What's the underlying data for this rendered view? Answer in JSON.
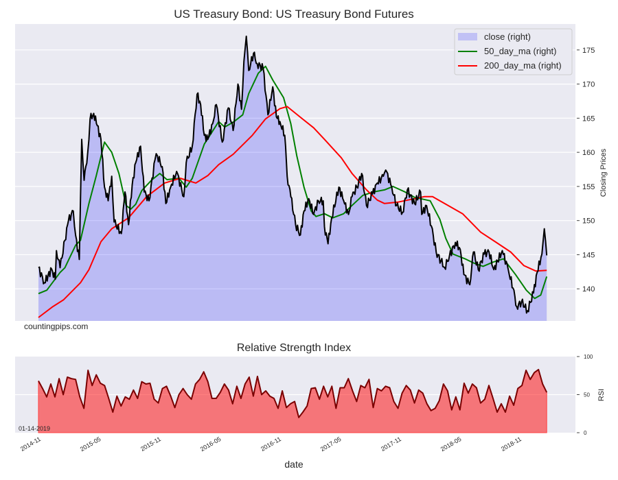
{
  "chart_data": [
    {
      "type": "area",
      "title": "US Treasury Bond: US Treasury Bond Futures",
      "ylabel": "Closing Prices",
      "ylim": [
        135.3,
        178.8
      ],
      "yticks": [
        140,
        145,
        150,
        155,
        160,
        165,
        170,
        175
      ],
      "grid": true,
      "legend_placement": "top-right",
      "legend": [
        "close (right)",
        "50_day_ma (right)",
        "200_day_ma (right)"
      ],
      "colors": {
        "close_fill": "#c1c1f5",
        "close_line": "#000000",
        "ma50": "#008000",
        "ma200": "#ff0000",
        "background": "#eaeaf2"
      },
      "watermark": "countingpips.com",
      "series": [
        {
          "name": "close (right)",
          "points": [
            [
              2014.81,
              143.1
            ],
            [
              2014.86,
              140.9
            ],
            [
              2014.92,
              142.9
            ],
            [
              2014.95,
              141.4
            ],
            [
              2014.96,
              145.6
            ],
            [
              2014.99,
              143.1
            ],
            [
              2015.03,
              147.1
            ],
            [
              2015.06,
              150.0
            ],
            [
              2015.1,
              151.4
            ],
            [
              2015.12,
              147.8
            ],
            [
              2015.15,
              144.3
            ],
            [
              2015.17,
              161.9
            ],
            [
              2015.19,
              155.9
            ],
            [
              2015.22,
              159.9
            ],
            [
              2015.24,
              164.9
            ],
            [
              2015.27,
              165.7
            ],
            [
              2015.3,
              163.9
            ],
            [
              2015.33,
              161.9
            ],
            [
              2015.36,
              154.9
            ],
            [
              2015.39,
              152.9
            ],
            [
              2015.42,
              156.5
            ],
            [
              2015.44,
              149.8
            ],
            [
              2015.5,
              148.1
            ],
            [
              2015.53,
              154.2
            ],
            [
              2015.56,
              149.4
            ],
            [
              2015.59,
              155.2
            ],
            [
              2015.62,
              158.5
            ],
            [
              2015.66,
              160.9
            ],
            [
              2015.69,
              154.2
            ],
            [
              2015.73,
              152.9
            ],
            [
              2015.78,
              158.9
            ],
            [
              2015.8,
              159.5
            ],
            [
              2015.84,
              157.9
            ],
            [
              2015.87,
              152.5
            ],
            [
              2015.91,
              154.9
            ],
            [
              2015.96,
              157.2
            ],
            [
              2016.02,
              153.5
            ],
            [
              2016.04,
              158.5
            ],
            [
              2016.09,
              160.9
            ],
            [
              2016.13,
              168.5
            ],
            [
              2016.16,
              167.0
            ],
            [
              2016.19,
              162.5
            ],
            [
              2016.22,
              161.9
            ],
            [
              2016.26,
              164.2
            ],
            [
              2016.29,
              167.0
            ],
            [
              2016.34,
              161.5
            ],
            [
              2016.39,
              166.5
            ],
            [
              2016.43,
              163.2
            ],
            [
              2016.47,
              170.0
            ],
            [
              2016.5,
              166.3
            ],
            [
              2016.52,
              173.3
            ],
            [
              2016.54,
              177.0
            ],
            [
              2016.56,
              172.0
            ],
            [
              2016.6,
              174.5
            ],
            [
              2016.63,
              173.0
            ],
            [
              2016.68,
              172.3
            ],
            [
              2016.72,
              165.5
            ],
            [
              2016.76,
              169.6
            ],
            [
              2016.79,
              165.2
            ],
            [
              2016.82,
              164.5
            ],
            [
              2016.86,
              162.5
            ],
            [
              2016.88,
              156.5
            ],
            [
              2016.91,
              153.5
            ],
            [
              2016.95,
              149.4
            ],
            [
              2016.99,
              147.9
            ],
            [
              2017.02,
              151.4
            ],
            [
              2017.06,
              153.2
            ],
            [
              2017.1,
              150.9
            ],
            [
              2017.14,
              152.9
            ],
            [
              2017.18,
              152.9
            ],
            [
              2017.19,
              149.1
            ],
            [
              2017.22,
              146.6
            ],
            [
              2017.25,
              150.4
            ],
            [
              2017.31,
              154.9
            ],
            [
              2017.35,
              152.9
            ],
            [
              2017.39,
              150.9
            ],
            [
              2017.42,
              153.5
            ],
            [
              2017.46,
              154.9
            ],
            [
              2017.5,
              156.9
            ],
            [
              2017.54,
              152.2
            ],
            [
              2017.59,
              153.9
            ],
            [
              2017.63,
              155.5
            ],
            [
              2017.68,
              156.5
            ],
            [
              2017.7,
              157.4
            ],
            [
              2017.75,
              154.9
            ],
            [
              2017.79,
              152.2
            ],
            [
              2017.84,
              151.2
            ],
            [
              2017.88,
              154.5
            ],
            [
              2017.94,
              152.5
            ],
            [
              2017.99,
              154.2
            ],
            [
              2018.0,
              150.9
            ],
            [
              2018.04,
              152.2
            ],
            [
              2018.08,
              149.2
            ],
            [
              2018.12,
              145.4
            ],
            [
              2018.16,
              144.1
            ],
            [
              2018.19,
              143.1
            ],
            [
              2018.23,
              144.8
            ],
            [
              2018.28,
              146.8
            ],
            [
              2018.32,
              145.8
            ],
            [
              2018.35,
              142.1
            ],
            [
              2018.4,
              140.6
            ],
            [
              2018.43,
              145.4
            ],
            [
              2018.47,
              142.8
            ],
            [
              2018.52,
              145.1
            ],
            [
              2018.56,
              145.4
            ],
            [
              2018.6,
              142.8
            ],
            [
              2018.67,
              145.6
            ],
            [
              2018.72,
              142.8
            ],
            [
              2018.76,
              140.1
            ],
            [
              2018.79,
              137.4
            ],
            [
              2018.83,
              138.1
            ],
            [
              2018.88,
              136.8
            ],
            [
              2018.93,
              139.4
            ],
            [
              2018.96,
              142.4
            ],
            [
              2019.0,
              145.1
            ],
            [
              2019.02,
              148.8
            ],
            [
              2019.04,
              144.9
            ]
          ]
        },
        {
          "name": "50_day_ma (right)",
          "points": [
            [
              2014.81,
              139.3
            ],
            [
              2014.88,
              139.8
            ],
            [
              2014.99,
              142.4
            ],
            [
              2015.03,
              143.1
            ],
            [
              2015.12,
              146.4
            ],
            [
              2015.16,
              147.1
            ],
            [
              2015.23,
              152.5
            ],
            [
              2015.29,
              156.5
            ],
            [
              2015.36,
              161.5
            ],
            [
              2015.42,
              160.0
            ],
            [
              2015.48,
              156.9
            ],
            [
              2015.54,
              152.2
            ],
            [
              2015.58,
              151.7
            ],
            [
              2015.62,
              152.4
            ],
            [
              2015.67,
              154.4
            ],
            [
              2015.75,
              155.9
            ],
            [
              2015.82,
              156.9
            ],
            [
              2015.88,
              156.0
            ],
            [
              2015.98,
              156.2
            ],
            [
              2016.04,
              154.9
            ],
            [
              2016.09,
              156.2
            ],
            [
              2016.19,
              161.2
            ],
            [
              2016.31,
              164.5
            ],
            [
              2016.36,
              163.7
            ],
            [
              2016.43,
              164.4
            ],
            [
              2016.51,
              165.5
            ],
            [
              2016.56,
              168.6
            ],
            [
              2016.64,
              171.6
            ],
            [
              2016.7,
              172.6
            ],
            [
              2016.76,
              170.6
            ],
            [
              2016.85,
              168.0
            ],
            [
              2016.91,
              164.2
            ],
            [
              2016.96,
              159.5
            ],
            [
              2017.02,
              154.9
            ],
            [
              2017.08,
              151.4
            ],
            [
              2017.12,
              150.6
            ],
            [
              2017.19,
              151.0
            ],
            [
              2017.26,
              150.4
            ],
            [
              2017.35,
              151.0
            ],
            [
              2017.4,
              151.9
            ],
            [
              2017.51,
              153.7
            ],
            [
              2017.6,
              154.2
            ],
            [
              2017.69,
              154.5
            ],
            [
              2017.76,
              155.0
            ],
            [
              2017.86,
              154.2
            ],
            [
              2017.94,
              153.4
            ],
            [
              2018.07,
              152.9
            ],
            [
              2018.15,
              150.2
            ],
            [
              2018.2,
              147.4
            ],
            [
              2018.26,
              145.1
            ],
            [
              2018.36,
              144.4
            ],
            [
              2018.43,
              143.8
            ],
            [
              2018.51,
              143.3
            ],
            [
              2018.59,
              143.9
            ],
            [
              2018.68,
              144.4
            ],
            [
              2018.78,
              142.1
            ],
            [
              2018.87,
              139.8
            ],
            [
              2018.94,
              138.6
            ],
            [
              2018.99,
              139.1
            ],
            [
              2019.04,
              141.8
            ]
          ]
        },
        {
          "name": "200_day_ma (right)",
          "points": [
            [
              2014.81,
              135.8
            ],
            [
              2014.93,
              137.4
            ],
            [
              2015.02,
              138.4
            ],
            [
              2015.16,
              140.9
            ],
            [
              2015.23,
              142.8
            ],
            [
              2015.33,
              146.9
            ],
            [
              2015.42,
              148.8
            ],
            [
              2015.56,
              150.4
            ],
            [
              2015.71,
              153.5
            ],
            [
              2015.86,
              155.5
            ],
            [
              2015.99,
              156.2
            ],
            [
              2016.12,
              155.5
            ],
            [
              2016.22,
              156.6
            ],
            [
              2016.31,
              158.2
            ],
            [
              2016.43,
              159.7
            ],
            [
              2016.59,
              162.5
            ],
            [
              2016.7,
              164.9
            ],
            [
              2016.82,
              166.4
            ],
            [
              2016.88,
              166.7
            ],
            [
              2017.0,
              165.0
            ],
            [
              2017.1,
              163.6
            ],
            [
              2017.19,
              161.9
            ],
            [
              2017.33,
              159.2
            ],
            [
              2017.42,
              156.9
            ],
            [
              2017.54,
              154.5
            ],
            [
              2017.63,
              153.0
            ],
            [
              2017.69,
              152.5
            ],
            [
              2017.8,
              152.7
            ],
            [
              2018.02,
              153.5
            ],
            [
              2018.09,
              153.5
            ],
            [
              2018.2,
              152.4
            ],
            [
              2018.34,
              151.0
            ],
            [
              2018.49,
              148.3
            ],
            [
              2018.62,
              146.8
            ],
            [
              2018.74,
              145.4
            ],
            [
              2018.85,
              143.4
            ],
            [
              2018.95,
              142.6
            ],
            [
              2019.04,
              142.7
            ]
          ]
        }
      ]
    },
    {
      "type": "area",
      "title": "Relative Strength Index",
      "ylabel": "RSI",
      "xlabel": "date",
      "ylim": [
        0,
        100
      ],
      "yticks": [
        0,
        50,
        100
      ],
      "date_annotation": "01-14-2019",
      "colors": {
        "fill": "#f47579",
        "line": "#7a0000"
      },
      "x_range": [
        2014.81,
        2019.04
      ],
      "values": [
        68,
        58,
        47,
        64,
        47,
        71,
        50,
        73,
        71,
        70,
        47,
        32,
        82,
        62,
        76,
        65,
        62,
        45,
        27,
        48,
        35,
        47,
        44,
        56,
        45,
        67,
        64,
        65,
        44,
        39,
        58,
        61,
        48,
        33,
        50,
        58,
        50,
        44,
        64,
        70,
        80,
        67,
        45,
        45,
        53,
        64,
        56,
        38,
        61,
        45,
        64,
        73,
        48,
        74,
        50,
        55,
        48,
        45,
        32,
        55,
        33,
        38,
        41,
        20,
        27,
        35,
        58,
        59,
        44,
        61,
        47,
        61,
        32,
        59,
        59,
        71,
        55,
        41,
        62,
        59,
        70,
        33,
        58,
        55,
        61,
        59,
        41,
        32,
        52,
        62,
        56,
        39,
        56,
        52,
        38,
        29,
        32,
        42,
        64,
        55,
        30,
        47,
        30,
        65,
        52,
        64,
        59,
        39,
        44,
        62,
        45,
        27,
        38,
        27,
        48,
        36,
        58,
        62,
        82,
        70,
        79,
        83,
        64,
        53
      ]
    }
  ],
  "x_axis": {
    "ticks": [
      {
        "label": "2014-11",
        "value": 2014.833
      },
      {
        "label": "2015-05",
        "value": 2015.333
      },
      {
        "label": "2015-11",
        "value": 2015.833
      },
      {
        "label": "2016-05",
        "value": 2016.333
      },
      {
        "label": "2016-11",
        "value": 2016.833
      },
      {
        "label": "2017-05",
        "value": 2017.333
      },
      {
        "label": "2017-11",
        "value": 2017.833
      },
      {
        "label": "2018-05",
        "value": 2018.333
      },
      {
        "label": "2018-11",
        "value": 2018.833
      }
    ],
    "label": "date"
  }
}
